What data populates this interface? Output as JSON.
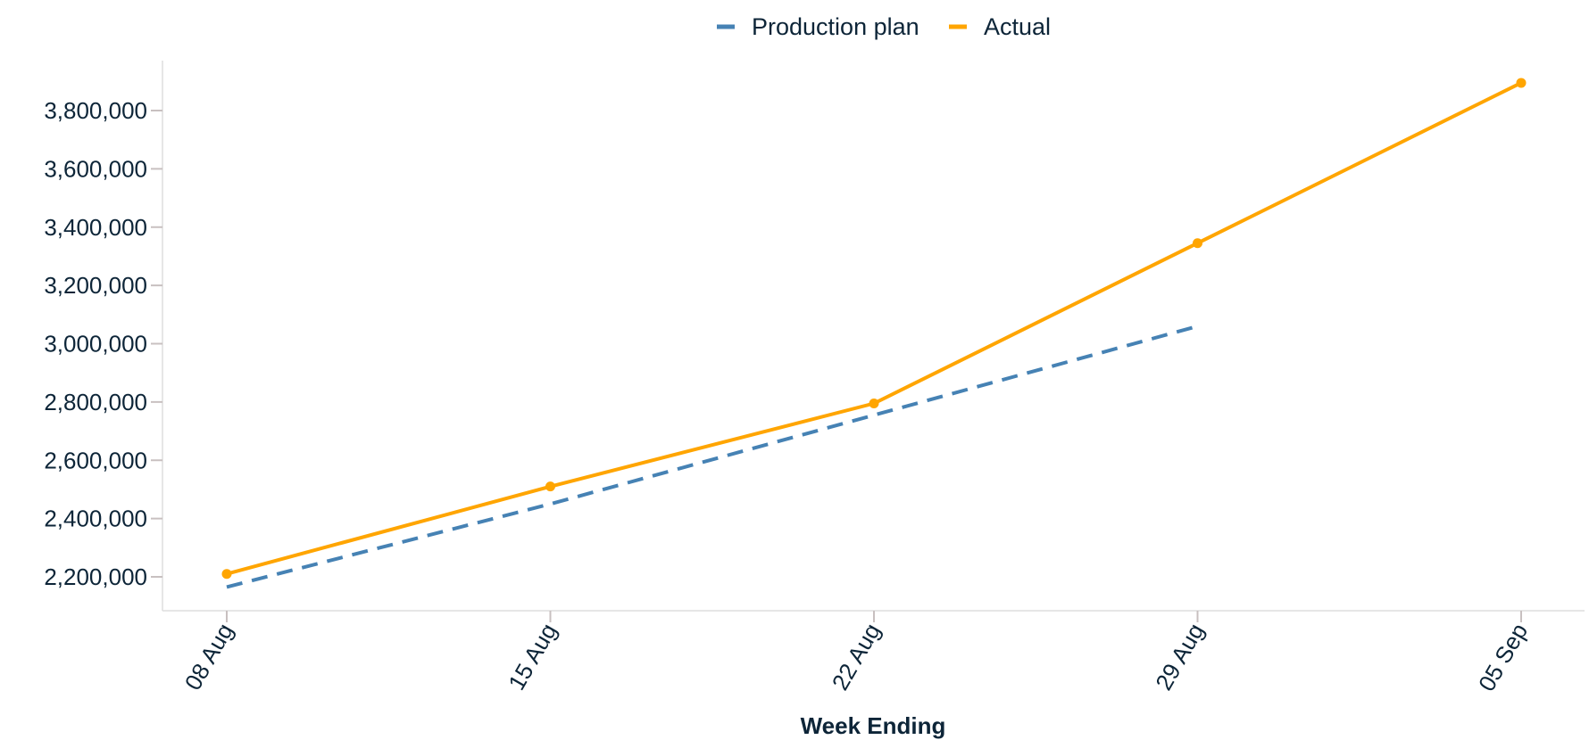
{
  "chart_data": {
    "type": "line",
    "title": "",
    "xlabel": "Week Ending",
    "ylabel": "",
    "x": [
      "08 Aug",
      "15 Aug",
      "22 Aug",
      "29 Aug",
      "05 Sep"
    ],
    "ylim": [
      2120000,
      3985000
    ],
    "y_ticks": [
      2200000,
      2400000,
      2600000,
      2800000,
      3000000,
      3200000,
      3400000,
      3600000,
      3800000
    ],
    "y_tick_labels": [
      "2,200,000",
      "2,400,000",
      "2,600,000",
      "2,800,000",
      "3,000,000",
      "3,200,000",
      "3,400,000",
      "3,600,000",
      "3,800,000"
    ],
    "grid": false,
    "legend_position": "top-center",
    "series": [
      {
        "name": "Production plan",
        "style": "dashed",
        "color": "#4682b4",
        "markers": false,
        "values": [
          2165000,
          2450000,
          2755000,
          3060000,
          null
        ]
      },
      {
        "name": "Actual",
        "style": "solid",
        "color": "#ffa500",
        "markers": true,
        "values": [
          2210000,
          2510000,
          2795000,
          3345000,
          3895000
        ]
      }
    ]
  }
}
